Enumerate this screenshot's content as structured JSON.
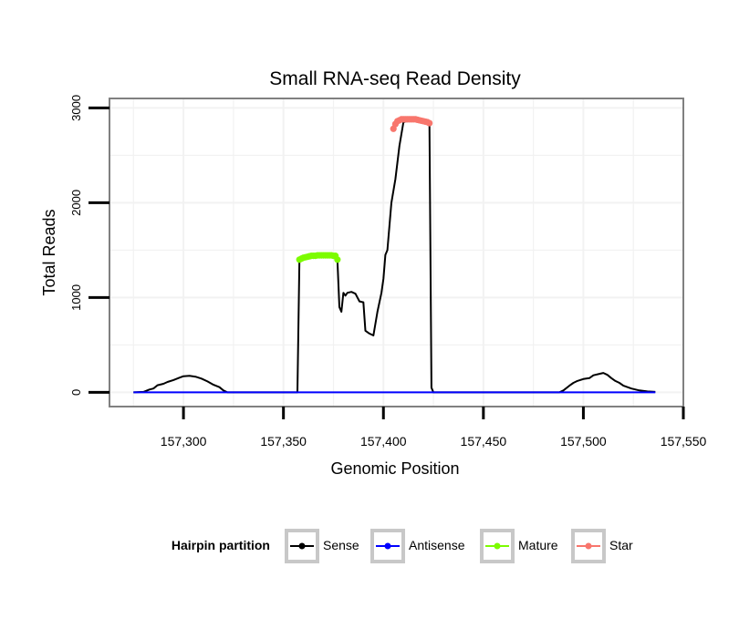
{
  "chart_data": {
    "type": "line",
    "title": "Small RNA-seq Read Density",
    "xlabel": "Genomic Position",
    "ylabel": "Total Reads",
    "xlim": [
      157263,
      157550
    ],
    "ylim": [
      -150,
      3100
    ],
    "x_ticks": [
      {
        "value": 157300,
        "label": "157,300"
      },
      {
        "value": 157350,
        "label": "157,350"
      },
      {
        "value": 157400,
        "label": "157,400"
      },
      {
        "value": 157450,
        "label": "157,450"
      },
      {
        "value": 157500,
        "label": "157,500"
      },
      {
        "value": 157550,
        "label": "157,550"
      }
    ],
    "y_ticks": [
      {
        "value": 0,
        "label": "0"
      },
      {
        "value": 1000,
        "label": "1000"
      },
      {
        "value": 2000,
        "label": "2000"
      },
      {
        "value": 3000,
        "label": "3000"
      }
    ],
    "grid": true,
    "legend": {
      "title": "Hairpin partition",
      "position": "bottom",
      "items": [
        {
          "name": "Sense",
          "color": "#000000"
        },
        {
          "name": "Antisense",
          "color": "#0000ff"
        },
        {
          "name": "Mature",
          "color": "#7cfc00"
        },
        {
          "name": "Star",
          "color": "#f8766d"
        }
      ]
    },
    "series": [
      {
        "name": "Sense",
        "color": "#000000",
        "style": "line",
        "x": [
          157275,
          157280,
          157283,
          157285,
          157287,
          157290,
          157292,
          157295,
          157298,
          157300,
          157303,
          157306,
          157309,
          157312,
          157315,
          157318,
          157320,
          157322,
          157330,
          157340,
          157350,
          157357,
          157358,
          157359,
          157362,
          157365,
          157370,
          157375,
          157377,
          157378,
          157379,
          157380,
          157381,
          157382,
          157384,
          157386,
          157388,
          157390,
          157391,
          157393,
          157395,
          157397,
          157399,
          157400,
          157401,
          157402,
          157404,
          157406,
          157408,
          157410,
          157415,
          157420,
          157423,
          157424,
          157425,
          157430,
          157450,
          157470,
          157488,
          157490,
          157493,
          157495,
          157497,
          157500,
          157503,
          157505,
          157508,
          157510,
          157512,
          157514,
          157516,
          157518,
          157520,
          157524,
          157528,
          157532,
          157536
        ],
        "y": [
          0,
          5,
          30,
          40,
          75,
          90,
          110,
          130,
          155,
          170,
          175,
          165,
          145,
          115,
          80,
          55,
          20,
          0,
          0,
          0,
          0,
          0,
          1400,
          1400,
          1420,
          1430,
          1440,
          1440,
          1400,
          900,
          850,
          1050,
          1020,
          1050,
          1060,
          1040,
          960,
          950,
          650,
          620,
          600,
          850,
          1050,
          1200,
          1450,
          1500,
          2000,
          2250,
          2600,
          2850,
          2880,
          2870,
          2840,
          50,
          0,
          0,
          0,
          0,
          0,
          20,
          70,
          100,
          120,
          140,
          150,
          180,
          195,
          205,
          185,
          150,
          120,
          100,
          70,
          40,
          20,
          10,
          5
        ]
      },
      {
        "name": "Antisense",
        "color": "#0000ff",
        "style": "line",
        "x": [
          157275,
          157536
        ],
        "y": [
          0,
          0
        ]
      },
      {
        "name": "Mature",
        "color": "#7cfc00",
        "style": "points",
        "x": [
          157358,
          157359,
          157360,
          157361,
          157362,
          157363,
          157364,
          157365,
          157366,
          157367,
          157368,
          157369,
          157370,
          157371,
          157372,
          157373,
          157374,
          157375,
          157376,
          157377
        ],
        "y": [
          1400,
          1410,
          1420,
          1425,
          1430,
          1435,
          1440,
          1440,
          1440,
          1445,
          1445,
          1445,
          1445,
          1445,
          1445,
          1445,
          1445,
          1440,
          1440,
          1400
        ]
      },
      {
        "name": "Star",
        "color": "#f8766d",
        "style": "points",
        "x": [
          157405,
          157406,
          157407,
          157408,
          157409,
          157410,
          157411,
          157412,
          157413,
          157414,
          157415,
          157416,
          157417,
          157418,
          157419,
          157420,
          157421,
          157422,
          157423
        ],
        "y": [
          2780,
          2830,
          2860,
          2870,
          2880,
          2880,
          2880,
          2880,
          2880,
          2880,
          2880,
          2880,
          2875,
          2870,
          2865,
          2860,
          2855,
          2850,
          2840
        ]
      }
    ]
  }
}
